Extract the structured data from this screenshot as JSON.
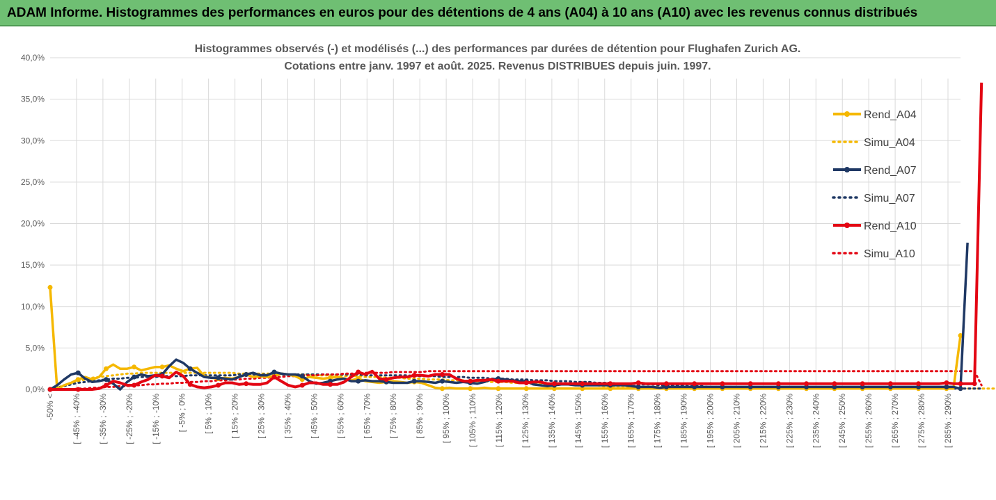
{
  "banner": {
    "title": "ADAM Informe. Histogrammes des performances en euros pour des détentions de 4 ans (A04) à 10 ans (A10) avec les revenus connus distribués"
  },
  "chart_data": {
    "type": "line",
    "title_line1": "Histogrammes observés (-) et modélisés (...) des performances par durées de détention pour Flughafen Zurich AG.",
    "title_line2": "Cotations entre janv. 1997 et août. 2025. Revenus DISTRIBUES depuis juin. 1997.",
    "ylim": [
      0,
      40
    ],
    "yticks": [
      "0,0%",
      "5,0%",
      "10,0%",
      "15,0%",
      "20,0%",
      "25,0%",
      "30,0%",
      "35,0%",
      "40,0%"
    ],
    "xtick_labels": [
      "-50% <",
      "[ -45% ; -40%",
      "[ -35% ; -30%",
      "[ -25% ; -20%",
      "[ -15% ; -10%",
      "[ -5% ; 0%",
      "[ 5% ; 10%",
      "[ 15% ; 20%",
      "[ 25% ; 30%",
      "[ 35% ; 40%",
      "[ 45% ; 50%",
      "[ 55% ; 60%",
      "[ 65% ; 70%",
      "[ 75% ; 80%",
      "[ 85% ; 90%",
      "[ 95% ; 100%",
      "[ 105% ; 110%",
      "[ 115% ; 120%",
      "[ 125% ; 130%",
      "[ 135% ; 140%",
      "[ 145% ; 150%",
      "[ 155% ; 160%",
      "[ 165% ; 170%",
      "[ 175% ; 180%",
      "[ 185% ; 190%",
      "[ 195% ; 200%",
      "[ 205% ; 210%",
      "[ 215% ; 220%",
      "[ 225% ; 230%",
      "[ 235% ; 240%",
      "[ 245% ; 250%",
      "[ 255% ; 260%",
      "[ 265% ; 270%",
      "[ 275% ; 280%",
      "[ 285% ; 290%"
    ],
    "series": [
      {
        "name": "Rend_A04",
        "style": "solid",
        "color": "#f5b800",
        "values": [
          12.3,
          0,
          0.5,
          0.8,
          1.2,
          1.5,
          1.2,
          1.5,
          2.5,
          3.0,
          2.5,
          2.5,
          2.7,
          2.3,
          2.5,
          2.7,
          2.7,
          2.9,
          2.5,
          2.2,
          2.5,
          2.6,
          1.6,
          1.4,
          1.3,
          1.4,
          1.3,
          1.5,
          1.8,
          1.5,
          1.6,
          1.5,
          1.6,
          1.9,
          1.8,
          1.6,
          1.2,
          1.5,
          1.4,
          1.3,
          1.4,
          1.5,
          1.3,
          1.1,
          1.3,
          1.0,
          0.9,
          0.8,
          0.9,
          1.0,
          0.9,
          0.8,
          0.9,
          0.8,
          0.5,
          0.2,
          0.1,
          0.2,
          0.1,
          0.1,
          0.1,
          0.1,
          0.2,
          0.1,
          0.1,
          0.1,
          0.1,
          0.1,
          0.1,
          0.1,
          0.1,
          0.1,
          0.1,
          0.1,
          0.1,
          0.1,
          0.1,
          0.1,
          0.1,
          0.1,
          0.1,
          0.1,
          0.1,
          0.1,
          0.1,
          0.1,
          0.1,
          0.1,
          0.1,
          0.1,
          0.1,
          0.1,
          0.1,
          0.1,
          0.1,
          0.1,
          0.1,
          0.1,
          0.1,
          0.1,
          0.1,
          0.1,
          0.1,
          0.1,
          0.1,
          0.1,
          0.1,
          0.1,
          0.1,
          0.1,
          0.1,
          0.1,
          0.1,
          0.1,
          0.1,
          0.1,
          0.1,
          0.1,
          0.1,
          0.1,
          0.1,
          0.1,
          0.1,
          0.1,
          0.1,
          0.1,
          0.1,
          0.1,
          0.1,
          0.1,
          6.5
        ]
      },
      {
        "name": "Simu_A04",
        "style": "dotted",
        "color": "#f5b800",
        "values": [
          0,
          0.2,
          0.5,
          0.8,
          1.0,
          1.2,
          1.4,
          1.5,
          1.6,
          1.7,
          1.8,
          1.9,
          1.9,
          2.0,
          2.0,
          2.0,
          2.0,
          2.0,
          2.0,
          2.0,
          2.0,
          2.0,
          2.0,
          2.0,
          2.0,
          2.0,
          2.0,
          1.9,
          1.9,
          1.9,
          1.9,
          1.9,
          1.9,
          1.9,
          1.8,
          1.8,
          1.8,
          1.8,
          1.7,
          1.7,
          1.7,
          1.7,
          1.6,
          1.6,
          1.6,
          1.5,
          1.5,
          1.5,
          1.4,
          1.4,
          1.4,
          1.3,
          1.3,
          1.3,
          1.2,
          1.2,
          1.2,
          1.1,
          1.1,
          1.1,
          1.0,
          1.0,
          1.0,
          0.9,
          0.9,
          0.9,
          0.8,
          0.8,
          0.8,
          0.7,
          0.7,
          0.7,
          0.6,
          0.6,
          0.6,
          0.5,
          0.5,
          0.5,
          0.5,
          0.4,
          0.4,
          0.4,
          0.4,
          0.3,
          0.3,
          0.3,
          0.3,
          0.3,
          0.2,
          0.2,
          0.2,
          0.2,
          0.2,
          0.2,
          0.1,
          0.1,
          0.1,
          0.1,
          0.1,
          0.1,
          0.1,
          0.1,
          0.1,
          0.1,
          0.1,
          0.1,
          0.1,
          0.1,
          0.1,
          0.1,
          0.1,
          0.1,
          0.1,
          0.1,
          0.1,
          0.1,
          0.1,
          0.1,
          0.1,
          0.1,
          0.1,
          0.1,
          0.1,
          0.1,
          0.1,
          0.1,
          0.1,
          0.1,
          0.1,
          0.1,
          0.1,
          0.1,
          0.1,
          0.1,
          0.1,
          0.1
        ]
      },
      {
        "name": "Rend_A07",
        "style": "solid",
        "color": "#1f3864",
        "values": [
          0,
          0.5,
          1.2,
          1.8,
          2.0,
          1.3,
          0.9,
          1.0,
          1.2,
          0.7,
          0,
          0.9,
          1.5,
          1.8,
          1.6,
          1.7,
          1.8,
          2.8,
          3.6,
          3.2,
          2.5,
          2.0,
          1.5,
          1.4,
          1.4,
          1.3,
          1.2,
          1.5,
          1.8,
          2.0,
          1.7,
          1.7,
          2.1,
          1.9,
          1.8,
          1.8,
          1.6,
          1.0,
          0.7,
          0.8,
          1.0,
          1.2,
          1.3,
          1.0,
          1.0,
          1.1,
          1.0,
          1.0,
          0.9,
          0.8,
          0.8,
          0.8,
          1.0,
          1.0,
          0.9,
          0.8,
          1.0,
          0.9,
          0.8,
          0.9,
          0.8,
          0.7,
          0.9,
          1.2,
          1.3,
          1.2,
          1.1,
          1.0,
          1.0,
          0.6,
          0.5,
          0.4,
          0.5,
          0.6,
          0.6,
          0.5,
          0.5,
          0.5,
          0.5,
          0.5,
          0.5,
          0.5,
          0.5,
          0.4,
          0.3,
          0.3,
          0.3,
          0.2,
          0.3,
          0.3,
          0.3,
          0.3,
          0.3,
          0.3,
          0.3,
          0.3,
          0.3,
          0.3,
          0.3,
          0.3,
          0.3,
          0.3,
          0.3,
          0.3,
          0.3,
          0.3,
          0.3,
          0.3,
          0.3,
          0.3,
          0.3,
          0.3,
          0.3,
          0.3,
          0.3,
          0.3,
          0.3,
          0.3,
          0.3,
          0.3,
          0.3,
          0.3,
          0.3,
          0.3,
          0.3,
          0.3,
          0.3,
          0.3,
          0.3,
          0.3,
          0.1,
          17.7
        ]
      },
      {
        "name": "Simu_A07",
        "style": "dotted",
        "color": "#1f3864",
        "values": [
          0,
          0.2,
          0.4,
          0.6,
          0.8,
          0.9,
          1.0,
          1.1,
          1.2,
          1.3,
          1.3,
          1.4,
          1.4,
          1.5,
          1.5,
          1.5,
          1.6,
          1.6,
          1.6,
          1.6,
          1.7,
          1.7,
          1.7,
          1.7,
          1.7,
          1.7,
          1.7,
          1.8,
          1.8,
          1.8,
          1.8,
          1.8,
          1.8,
          1.8,
          1.8,
          1.8,
          1.8,
          1.8,
          1.8,
          1.8,
          1.8,
          1.8,
          1.8,
          1.8,
          1.8,
          1.7,
          1.7,
          1.7,
          1.7,
          1.7,
          1.7,
          1.7,
          1.6,
          1.6,
          1.6,
          1.6,
          1.5,
          1.5,
          1.5,
          1.5,
          1.4,
          1.4,
          1.4,
          1.3,
          1.3,
          1.3,
          1.2,
          1.2,
          1.2,
          1.1,
          1.1,
          1.1,
          1.0,
          1.0,
          1.0,
          0.9,
          0.9,
          0.9,
          0.8,
          0.8,
          0.8,
          0.7,
          0.7,
          0.7,
          0.6,
          0.6,
          0.6,
          0.5,
          0.5,
          0.5,
          0.5,
          0.4,
          0.4,
          0.4,
          0.3,
          0.3,
          0.3,
          0.3,
          0.3,
          0.2,
          0.2,
          0.2,
          0.2,
          0.2,
          0.2,
          0.1,
          0.1,
          0.1,
          0.1,
          0.1,
          0.1,
          0.1,
          0.1,
          0.1,
          0.1,
          0.1,
          0.1,
          0.1,
          0.1,
          0.1,
          0.1,
          0.1,
          0.1,
          0.1,
          0.1,
          0.1,
          0.1,
          0.1,
          0.1,
          0.1,
          0.1,
          0.1,
          0.1,
          0.1
        ]
      },
      {
        "name": "Rend_A10",
        "style": "solid",
        "color": "#e30613",
        "values": [
          0,
          0,
          0,
          0,
          0,
          0,
          0,
          0.1,
          0.5,
          1.0,
          0.8,
          0.5,
          0.5,
          0.9,
          1.2,
          1.7,
          1.6,
          1.4,
          2.1,
          1.6,
          0.6,
          0.3,
          0.2,
          0.3,
          0.5,
          0.8,
          0.8,
          0.6,
          0.7,
          0.6,
          0.6,
          0.8,
          1.5,
          1.0,
          0.5,
          0.3,
          0.5,
          0.8,
          0.8,
          0.6,
          0.6,
          0.6,
          0.9,
          1.5,
          2.1,
          1.8,
          2.2,
          1.3,
          1.2,
          1.4,
          1.5,
          1.5,
          1.7,
          1.7,
          1.6,
          1.8,
          1.8,
          1.8,
          1.3,
          1.0,
          1.0,
          1.1,
          1.1,
          1.2,
          1.0,
          1.0,
          1.0,
          0.8,
          0.8,
          0.9,
          0.9,
          0.7,
          0.7,
          0.7,
          0.7,
          0.7,
          0.7,
          0.7,
          0.7,
          0.7,
          0.7,
          0.7,
          0.7,
          0.7,
          0.8,
          0.7,
          0.7,
          0.7,
          0.7,
          0.7,
          0.7,
          0.7,
          0.7,
          0.7,
          0.7,
          0.7,
          0.7,
          0.7,
          0.7,
          0.7,
          0.7,
          0.7,
          0.7,
          0.7,
          0.7,
          0.7,
          0.7,
          0.7,
          0.7,
          0.7,
          0.7,
          0.7,
          0.7,
          0.7,
          0.7,
          0.7,
          0.7,
          0.7,
          0.7,
          0.7,
          0.7,
          0.7,
          0.7,
          0.7,
          0.7,
          0.7,
          0.7,
          0.7,
          0.8,
          0.7,
          0.7,
          0.7,
          0.7,
          37.0
        ]
      },
      {
        "name": "Simu_A10",
        "style": "dotted",
        "color": "#e30613",
        "values": [
          0,
          0,
          0,
          0,
          0.1,
          0.1,
          0.2,
          0.2,
          0.3,
          0.3,
          0.4,
          0.4,
          0.5,
          0.5,
          0.6,
          0.6,
          0.7,
          0.7,
          0.8,
          0.8,
          0.9,
          0.9,
          1.0,
          1.0,
          1.1,
          1.1,
          1.2,
          1.2,
          1.3,
          1.3,
          1.4,
          1.4,
          1.5,
          1.5,
          1.6,
          1.6,
          1.7,
          1.7,
          1.7,
          1.8,
          1.8,
          1.8,
          1.9,
          1.9,
          1.9,
          2.0,
          2.0,
          2.0,
          2.0,
          2.1,
          2.1,
          2.1,
          2.1,
          2.1,
          2.2,
          2.2,
          2.2,
          2.2,
          2.2,
          2.2,
          2.2,
          2.2,
          2.2,
          2.2,
          2.2,
          2.2,
          2.2,
          2.2,
          2.2,
          2.2,
          2.2,
          2.2,
          2.2,
          2.2,
          2.2,
          2.2,
          2.2,
          2.2,
          2.2,
          2.2,
          2.2,
          2.2,
          2.2,
          2.2,
          2.2,
          2.2,
          2.2,
          2.2,
          2.2,
          2.2,
          2.2,
          2.2,
          2.2,
          2.2,
          2.2,
          2.2,
          2.2,
          2.2,
          2.2,
          2.2,
          2.2,
          2.2,
          2.2,
          2.2,
          2.2,
          2.2,
          2.2,
          2.2,
          2.2,
          2.2,
          2.2,
          2.2,
          2.2,
          2.2,
          2.2,
          2.2,
          2.2,
          2.2,
          2.2,
          2.2,
          2.2,
          2.2,
          2.2,
          2.2,
          2.2,
          2.2,
          2.2,
          2.2,
          2.2,
          2.2,
          2.2,
          2.2,
          2.2,
          0.5
        ]
      }
    ],
    "grid": true,
    "legend_position": "right"
  }
}
